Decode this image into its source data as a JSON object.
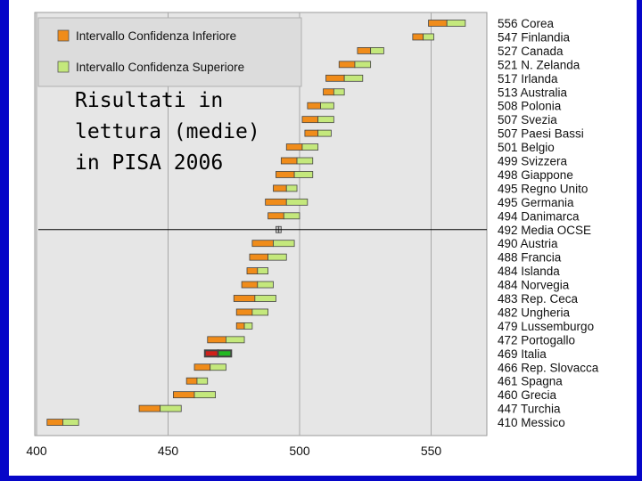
{
  "title_lines": [
    "Risultati in",
    "lettura (medie)",
    "in PISA 2006"
  ],
  "colors": {
    "lower": "#f08c1a",
    "upper": "#c4e87c",
    "italy_lower": "#d0201a",
    "italy_upper": "#22b822",
    "frame": "#0606c8",
    "plot_bg": "#e6e6e6"
  },
  "chart_data": {
    "type": "bar",
    "orientation": "horizontal",
    "legend": {
      "placement": "top-left",
      "lower_label": "Intervallo Confidenza Inferiore",
      "upper_label": "Intervallo Confidenza Superiore"
    },
    "xlim": [
      400,
      570
    ],
    "xticks": [
      400,
      450,
      500,
      550
    ],
    "grid": true,
    "reference_line": "Media OCSE",
    "categories": [
      {
        "name": "Corea",
        "score": 556,
        "lo": 549,
        "hi": 563
      },
      {
        "name": "Finlandia",
        "score": 547,
        "lo": 543,
        "hi": 551
      },
      {
        "name": "Canada",
        "score": 527,
        "lo": 522,
        "hi": 532
      },
      {
        "name": "N. Zelanda",
        "score": 521,
        "lo": 515,
        "hi": 527
      },
      {
        "name": "Irlanda",
        "score": 517,
        "lo": 510,
        "hi": 524
      },
      {
        "name": "Australia",
        "score": 513,
        "lo": 509,
        "hi": 517
      },
      {
        "name": "Polonia",
        "score": 508,
        "lo": 503,
        "hi": 513
      },
      {
        "name": "Svezia",
        "score": 507,
        "lo": 501,
        "hi": 513
      },
      {
        "name": "Paesi Bassi",
        "score": 507,
        "lo": 502,
        "hi": 512
      },
      {
        "name": "Belgio",
        "score": 501,
        "lo": 495,
        "hi": 507
      },
      {
        "name": "Svizzera",
        "score": 499,
        "lo": 493,
        "hi": 505
      },
      {
        "name": "Giappone",
        "score": 498,
        "lo": 491,
        "hi": 505
      },
      {
        "name": "Regno Unito",
        "score": 495,
        "lo": 490,
        "hi": 499
      },
      {
        "name": "Germania",
        "score": 495,
        "lo": 487,
        "hi": 503
      },
      {
        "name": "Danimarca",
        "score": 494,
        "lo": 488,
        "hi": 500
      },
      {
        "name": "Media OCSE",
        "score": 492,
        "lo": 491,
        "hi": 493
      },
      {
        "name": "Austria",
        "score": 490,
        "lo": 482,
        "hi": 498
      },
      {
        "name": "Francia",
        "score": 488,
        "lo": 481,
        "hi": 495
      },
      {
        "name": "Islanda",
        "score": 484,
        "lo": 480,
        "hi": 488
      },
      {
        "name": "Norvegia",
        "score": 484,
        "lo": 478,
        "hi": 490
      },
      {
        "name": "Rep. Ceca",
        "score": 483,
        "lo": 475,
        "hi": 491
      },
      {
        "name": "Ungheria",
        "score": 482,
        "lo": 476,
        "hi": 488
      },
      {
        "name": "Lussemburgo",
        "score": 479,
        "lo": 476,
        "hi": 482
      },
      {
        "name": "Portogallo",
        "score": 472,
        "lo": 465,
        "hi": 479
      },
      {
        "name": "Italia",
        "score": 469,
        "lo": 464,
        "hi": 474
      },
      {
        "name": "Rep. Slovacca",
        "score": 466,
        "lo": 460,
        "hi": 472
      },
      {
        "name": "Spagna",
        "score": 461,
        "lo": 457,
        "hi": 465
      },
      {
        "name": "Grecia",
        "score": 460,
        "lo": 452,
        "hi": 468
      },
      {
        "name": "Turchia",
        "score": 447,
        "lo": 439,
        "hi": 455
      },
      {
        "name": "Messico",
        "score": 410,
        "lo": 404,
        "hi": 416
      }
    ]
  }
}
